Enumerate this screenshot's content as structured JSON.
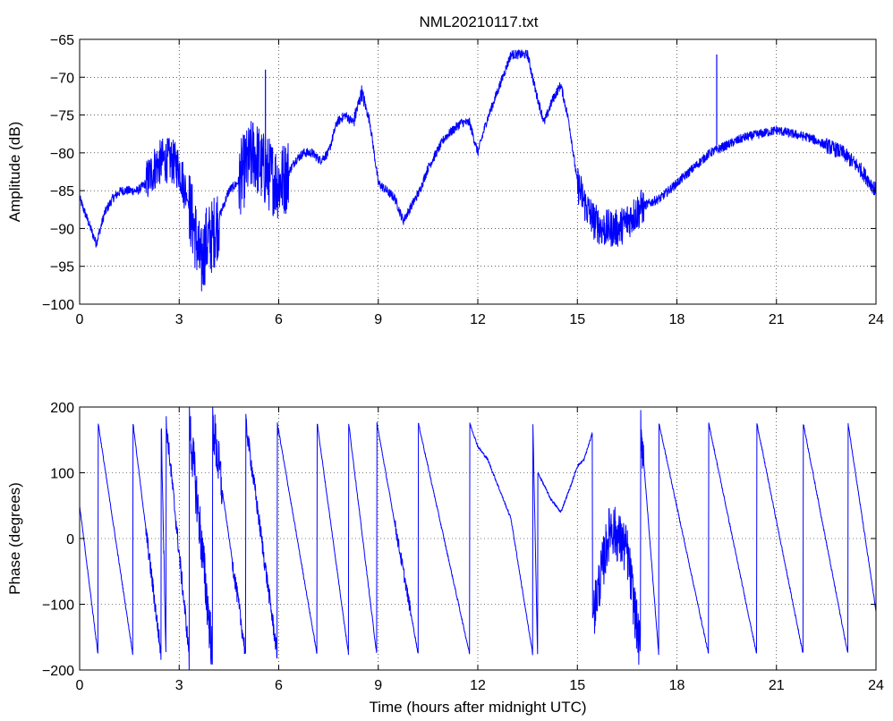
{
  "figure": {
    "title": "NML20210117.txt",
    "line_color": "#0000ff"
  },
  "chart_data": [
    {
      "type": "line",
      "title": "NML20210117.txt",
      "xlabel": "",
      "ylabel": "Amplitude (dB)",
      "xlim": [
        0,
        24
      ],
      "ylim": [
        -100,
        -65
      ],
      "xticks": [
        0,
        3,
        6,
        9,
        12,
        15,
        18,
        21,
        24
      ],
      "xtick_labels": [
        "0",
        "3",
        "6",
        "9",
        "12",
        "15",
        "18",
        "21",
        "24"
      ],
      "yticks": [
        -100,
        -95,
        -90,
        -85,
        -80,
        -75,
        -70,
        -65
      ],
      "ytick_labels": [
        "−100",
        "−95",
        "−90",
        "−85",
        "−80",
        "−75",
        "−70",
        "−65"
      ],
      "grid": true,
      "series": [
        {
          "color": "#0000ff",
          "x": [
            0,
            0.25,
            0.5,
            0.75,
            1.0,
            1.25,
            1.5,
            1.75,
            2.0,
            2.25,
            2.5,
            2.75,
            3.0,
            3.25,
            3.5,
            3.65,
            3.8,
            4.0,
            4.25,
            4.5,
            4.75,
            5.0,
            5.25,
            5.5,
            5.75,
            6.0,
            6.25,
            6.5,
            6.75,
            7.0,
            7.25,
            7.5,
            7.75,
            8.0,
            8.25,
            8.5,
            8.75,
            9.0,
            9.25,
            9.5,
            9.75,
            10.0,
            10.25,
            10.5,
            10.75,
            11.0,
            11.25,
            11.5,
            11.75,
            12.0,
            12.25,
            12.5,
            12.75,
            13.0,
            13.25,
            13.5,
            13.75,
            14.0,
            14.25,
            14.5,
            14.75,
            15.0,
            15.25,
            15.5,
            15.75,
            16.0,
            16.25,
            16.5,
            16.75,
            17.0,
            17.5,
            18.0,
            18.5,
            19.0,
            19.5,
            20.0,
            20.5,
            21.0,
            21.5,
            22.0,
            22.5,
            23.0,
            23.5,
            24.0
          ],
          "y": [
            -86,
            -89,
            -92,
            -88,
            -86,
            -85,
            -85,
            -85,
            -84,
            -82,
            -81,
            -81,
            -82,
            -86,
            -91,
            -95,
            -92,
            -91,
            -88,
            -85,
            -84,
            -82,
            -80,
            -82,
            -83,
            -84,
            -83,
            -81,
            -80,
            -80,
            -81,
            -80,
            -76,
            -75,
            -76,
            -72,
            -76,
            -84,
            -85,
            -86,
            -89,
            -87,
            -85,
            -82,
            -80,
            -78,
            -77,
            -76,
            -76,
            -80,
            -76,
            -73,
            -70,
            -67,
            -67,
            -67,
            -72,
            -76,
            -73,
            -71,
            -76,
            -84,
            -87,
            -89,
            -90,
            -90,
            -90,
            -89,
            -88,
            -87,
            -86,
            -84,
            -82,
            -80,
            -79,
            -78,
            -77.5,
            -77,
            -77.5,
            -78,
            -79,
            -80,
            -82,
            -85
          ]
        }
      ],
      "spikes": [
        {
          "x": 5.6,
          "y": -69
        },
        {
          "x": 19.2,
          "y": -67
        }
      ],
      "noisy_segments": [
        [
          2.0,
          3.2,
          3.0
        ],
        [
          3.3,
          4.2,
          5.0
        ],
        [
          4.8,
          6.3,
          5.0
        ],
        [
          8.2,
          8.6,
          1.0
        ],
        [
          15.0,
          17.0,
          2.5
        ],
        [
          22.5,
          24.0,
          1.0
        ]
      ]
    },
    {
      "type": "line",
      "title": "",
      "xlabel": "Time (hours after midnight UTC)",
      "ylabel": "Phase (degrees)",
      "xlim": [
        0,
        24
      ],
      "ylim": [
        -200,
        200
      ],
      "xticks": [
        0,
        3,
        6,
        9,
        12,
        15,
        18,
        21,
        24
      ],
      "xtick_labels": [
        "0",
        "3",
        "6",
        "9",
        "12",
        "15",
        "18",
        "21",
        "24"
      ],
      "yticks": [
        -200,
        -100,
        0,
        100,
        200
      ],
      "ytick_labels": [
        "−200",
        "−100",
        "0",
        "100",
        "200"
      ],
      "grid": true,
      "series": [
        {
          "color": "#0000ff",
          "x": [
            0,
            0.55,
            0.56,
            1.6,
            1.61,
            2.45,
            2.46,
            2.6,
            2.61,
            3.3,
            3.31,
            4.0,
            4.01,
            5.0,
            5.01,
            5.95,
            5.96,
            7.15,
            7.16,
            8.1,
            8.11,
            8.95,
            8.96,
            10.2,
            10.21,
            11.75,
            11.76,
            12.0,
            12.3,
            13.0,
            13.65,
            13.66,
            13.8,
            13.81,
            14.2,
            14.5,
            14.8,
            15.0,
            15.2,
            15.45,
            15.46,
            16.0,
            16.5,
            16.9,
            16.91,
            17.45,
            17.46,
            18.95,
            18.96,
            20.4,
            20.41,
            21.8,
            21.81,
            23.15,
            23.16,
            24.0
          ],
          "y": [
            50,
            -175,
            175,
            -175,
            175,
            -175,
            175,
            -175,
            175,
            -175,
            175,
            -175,
            175,
            -175,
            175,
            -175,
            175,
            -175,
            175,
            -175,
            175,
            -175,
            175,
            -175,
            175,
            -175,
            175,
            140,
            120,
            30,
            -175,
            175,
            -175,
            100,
            60,
            40,
            80,
            110,
            120,
            160,
            -120,
            20,
            -20,
            -175,
            175,
            -175,
            175,
            -175,
            175,
            -175,
            175,
            -175,
            175,
            -175,
            175,
            -110
          ]
        }
      ],
      "noisy_segments": [
        [
          2.0,
          3.3,
          14
        ],
        [
          3.3,
          4.3,
          40
        ],
        [
          4.6,
          6.0,
          14
        ],
        [
          9.5,
          10.0,
          10
        ],
        [
          15.5,
          17.0,
          40
        ]
      ]
    }
  ]
}
